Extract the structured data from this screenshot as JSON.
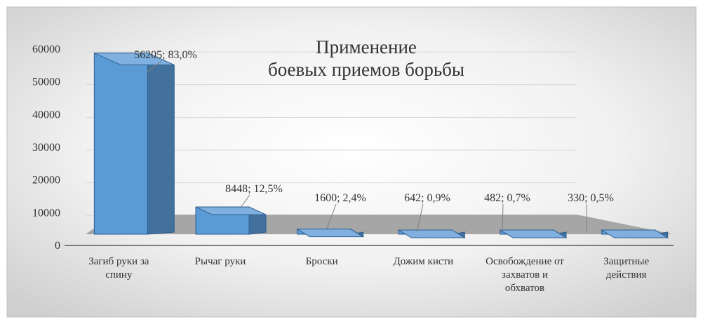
{
  "chart_data": {
    "type": "bar",
    "title_lines": [
      "Применение",
      "боевых приемов борьбы"
    ],
    "categories": [
      [
        "Загиб руки за",
        "спину"
      ],
      [
        "Рычаг руки"
      ],
      [
        "Броски"
      ],
      [
        "Дожим кисти"
      ],
      [
        "Освобождение от",
        "захватов и",
        "обхватов"
      ],
      [
        "Защитные",
        "действия"
      ]
    ],
    "values": [
      56205,
      8448,
      1600,
      642,
      482,
      330
    ],
    "percents": [
      "83,0%",
      "12,5%",
      "2,4%",
      "0,9%",
      "0,7%",
      "0,5%"
    ],
    "data_labels": [
      "56205; 83,0%",
      "8448; 12,5%",
      "1600; 2,4%",
      "642; 0,9%",
      "482; 0,7%",
      "330; 0,5%"
    ],
    "yticks": [
      0,
      10000,
      20000,
      30000,
      40000,
      50000,
      60000
    ],
    "ylim": [
      0,
      60000
    ],
    "grid": true,
    "style": "3d-column",
    "colors": {
      "bar_front": "#5b9bd5",
      "bar_side": "#41719c",
      "bar_top": "#7fb0e0",
      "bar_edge": "#2f5f8f",
      "floor": "#a6a6a6",
      "background_outer": "#d6d6d6",
      "background_inner": "#ffffff"
    }
  }
}
